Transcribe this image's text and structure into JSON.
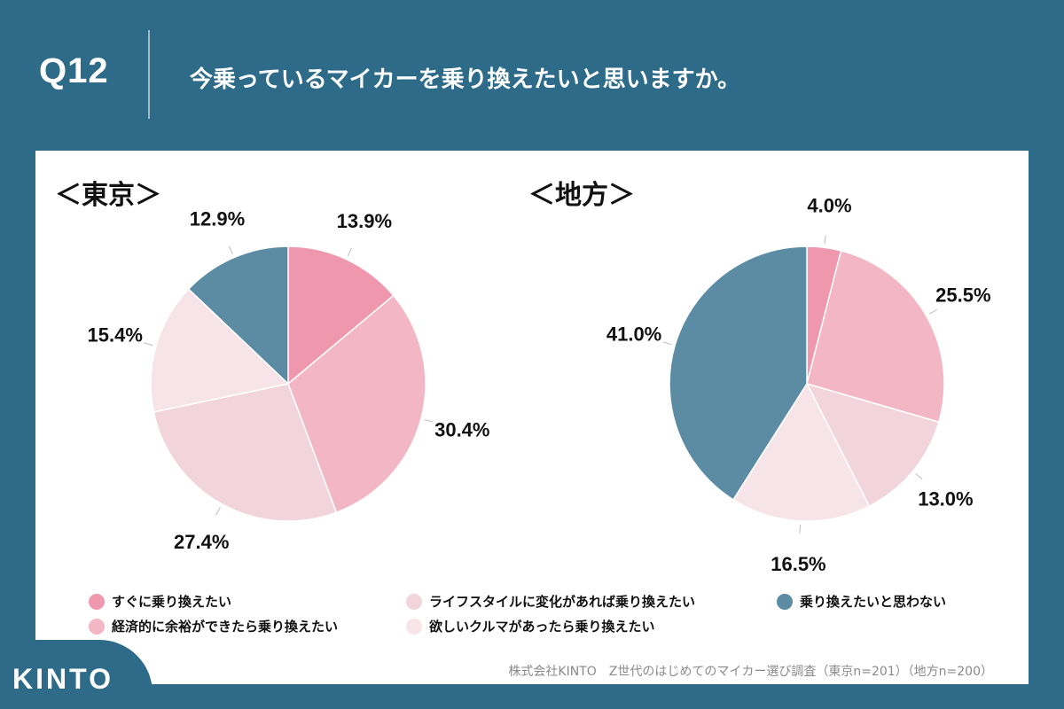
{
  "header": {
    "qnum": "Q12",
    "title": "今乗っているマイカーを乗り換えたいと思いますか。"
  },
  "chart_data": [
    {
      "type": "pie",
      "title": "＜東京＞",
      "categories": [
        "すぐに乗り換えたい",
        "経済的に余裕ができたら乗り換えたい",
        "ライフスタイルに変化があれば乗り換えたい",
        "欲しいクルマがあったら乗り換えたい",
        "乗り換えたいと思わない"
      ],
      "values": [
        13.9,
        30.4,
        27.4,
        15.4,
        12.9
      ],
      "labels": [
        "13.9%",
        "30.4%",
        "27.4%",
        "15.4%",
        "12.9%"
      ]
    },
    {
      "type": "pie",
      "title": "＜地方＞",
      "categories": [
        "すぐに乗り換えたい",
        "経済的に余裕ができたら乗り換えたい",
        "ライフスタイルに変化があれば乗り換えたい",
        "欲しいクルマがあったら乗り換えたい",
        "乗り換えたいと思わない"
      ],
      "values": [
        4.0,
        25.5,
        13.0,
        16.5,
        41.0
      ],
      "labels": [
        "4.0%",
        "25.5%",
        "13.0%",
        "16.5%",
        "41.0%"
      ]
    }
  ],
  "colors": [
    "#ef98ad",
    "#f3b6c5",
    "#f2d5dc",
    "#f6e4e8",
    "#5b8ca3"
  ],
  "legend": [
    {
      "label": "すぐに乗り換えたい",
      "color": "#ef98ad"
    },
    {
      "label": "ライフスタイルに変化があれば乗り換えたい",
      "color": "#f2d5dc"
    },
    {
      "label": "乗り換えたいと思わない",
      "color": "#5b8ca3"
    },
    {
      "label": "経済的に余裕ができたら乗り換えたい",
      "color": "#f3b6c5"
    },
    {
      "label": "欲しいクルマがあったら乗り換えたい",
      "color": "#f6e4e8"
    }
  ],
  "source": "株式会社KINTO　Z世代のはじめてのマイカー選び調査（東京n=201）（地方n=200）",
  "logo": "KINTO"
}
